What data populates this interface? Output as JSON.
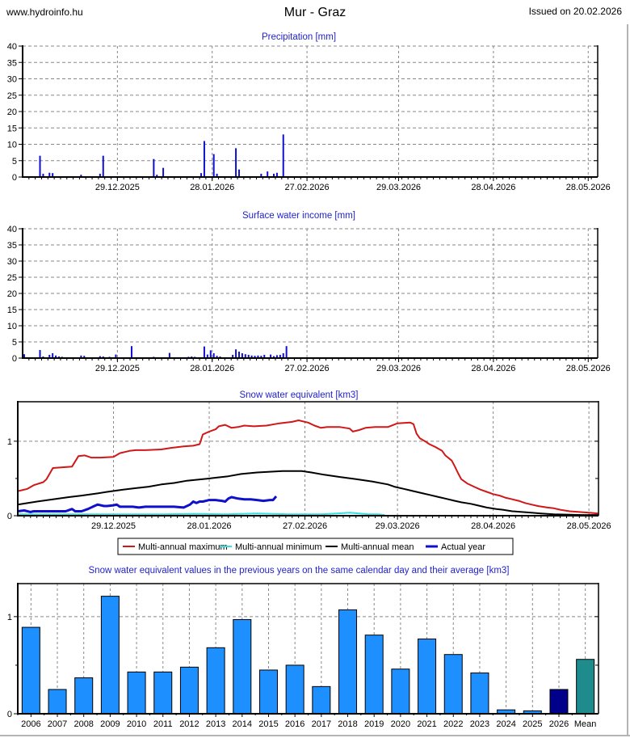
{
  "header": {
    "site": "www.hydroinfo.hu",
    "title": "Mur - Graz",
    "issued": "Issued on 20.02.2026"
  },
  "palette": {
    "title_blue": "#2222cc",
    "grid": "#888888",
    "axis": "#000000",
    "bar_blue": "#1010cf",
    "year_bar": "#1e8fff",
    "bar_2026": "#00008b",
    "bar_mean": "#1e8c8c",
    "line_max": "#d01818",
    "line_min": "#38dede",
    "line_mean": "#000000",
    "line_actual": "#0f0fcc",
    "frame_gray": "#b4b4b4"
  },
  "time_axis": {
    "span_days": 182,
    "tick_days": [
      30,
      60,
      90,
      119,
      149,
      179
    ],
    "tick_labels": [
      "29.12.2025",
      "28.01.2026",
      "27.02.2026",
      "29.03.2026",
      "28.04.2026",
      "28.05.2026"
    ]
  },
  "chart_data": [
    {
      "type": "bar",
      "title": "Precipitation [mm]",
      "ylabel": "mm",
      "ylim": [
        0,
        40
      ],
      "yticks": [
        0,
        5,
        10,
        15,
        20,
        25,
        30,
        35,
        40
      ],
      "grid": true,
      "bars": [
        [
          5,
          6.5
        ],
        [
          6,
          1.0
        ],
        [
          8,
          1.3
        ],
        [
          9,
          1.2
        ],
        [
          18,
          0.7
        ],
        [
          24,
          1.0
        ],
        [
          25,
          6.5
        ],
        [
          41,
          5.5
        ],
        [
          42,
          0.7
        ],
        [
          44,
          2.8
        ],
        [
          56,
          1.2
        ],
        [
          57,
          11.0
        ],
        [
          60,
          7.0
        ],
        [
          61,
          1.0
        ],
        [
          67,
          8.8
        ],
        [
          68,
          2.3
        ],
        [
          75,
          1.0
        ],
        [
          77,
          1.7
        ],
        [
          79,
          1.0
        ],
        [
          80,
          1.3
        ],
        [
          82,
          13.0
        ]
      ]
    },
    {
      "type": "bar",
      "title": "Surface water income [mm]",
      "ylabel": "mm",
      "ylim": [
        0,
        40
      ],
      "yticks": [
        0,
        5,
        10,
        15,
        20,
        25,
        30,
        35,
        40
      ],
      "grid": true,
      "bars": [
        [
          0,
          1.2
        ],
        [
          5,
          2.5
        ],
        [
          6,
          0.5
        ],
        [
          8,
          1.0
        ],
        [
          9,
          1.5
        ],
        [
          10,
          0.8
        ],
        [
          11,
          0.5
        ],
        [
          12,
          0.4
        ],
        [
          18,
          0.8
        ],
        [
          19,
          0.7
        ],
        [
          24,
          0.6
        ],
        [
          25,
          0.5
        ],
        [
          27,
          0.4
        ],
        [
          29,
          1.1
        ],
        [
          34,
          3.7
        ],
        [
          41,
          0.4
        ],
        [
          46,
          1.6
        ],
        [
          52,
          0.4
        ],
        [
          53,
          0.5
        ],
        [
          54,
          0.4
        ],
        [
          57,
          3.6
        ],
        [
          58,
          1.1
        ],
        [
          59,
          2.4
        ],
        [
          60,
          1.5
        ],
        [
          61,
          0.7
        ],
        [
          62,
          0.5
        ],
        [
          66,
          1.0
        ],
        [
          67,
          2.7
        ],
        [
          68,
          2.0
        ],
        [
          69,
          1.5
        ],
        [
          70,
          1.2
        ],
        [
          71,
          1.0
        ],
        [
          72,
          0.8
        ],
        [
          73,
          0.7
        ],
        [
          74,
          0.8
        ],
        [
          75,
          0.7
        ],
        [
          76,
          1.0
        ],
        [
          78,
          1.1
        ],
        [
          79,
          0.6
        ],
        [
          80,
          0.9
        ],
        [
          81,
          1.0
        ],
        [
          82,
          1.5
        ],
        [
          83,
          3.7
        ]
      ]
    },
    {
      "type": "line",
      "title": "Snow water equivalent [km3]",
      "ylabel": "km3",
      "ylim": [
        0,
        1.53
      ],
      "yticks": [
        0,
        1
      ],
      "minor_yticks": [
        0.5
      ],
      "grid": true,
      "legend_position": "bottom",
      "series": [
        {
          "name": "Multi-annual maximum",
          "color_key": "line_max",
          "width": 2,
          "points": [
            [
              0,
              0.33
            ],
            [
              3,
              0.36
            ],
            [
              5,
              0.41
            ],
            [
              8,
              0.45
            ],
            [
              9,
              0.49
            ],
            [
              11,
              0.64
            ],
            [
              14,
              0.65
            ],
            [
              17,
              0.66
            ],
            [
              19,
              0.8
            ],
            [
              21,
              0.81
            ],
            [
              23,
              0.78
            ],
            [
              26,
              0.78
            ],
            [
              30,
              0.79
            ],
            [
              32,
              0.84
            ],
            [
              35,
              0.87
            ],
            [
              37,
              0.88
            ],
            [
              40,
              0.88
            ],
            [
              45,
              0.89
            ],
            [
              48,
              0.91
            ],
            [
              52,
              0.93
            ],
            [
              55,
              0.94
            ],
            [
              57,
              0.96
            ],
            [
              58,
              1.09
            ],
            [
              60,
              1.13
            ],
            [
              62,
              1.16
            ],
            [
              63,
              1.2
            ],
            [
              65,
              1.22
            ],
            [
              67,
              1.18
            ],
            [
              69,
              1.19
            ],
            [
              71,
              1.21
            ],
            [
              74,
              1.2
            ],
            [
              78,
              1.21
            ],
            [
              82,
              1.24
            ],
            [
              86,
              1.26
            ],
            [
              88,
              1.28
            ],
            [
              91,
              1.25
            ],
            [
              93,
              1.21
            ],
            [
              95,
              1.18
            ],
            [
              97,
              1.19
            ],
            [
              101,
              1.19
            ],
            [
              104,
              1.17
            ],
            [
              105,
              1.13
            ],
            [
              107,
              1.15
            ],
            [
              109,
              1.18
            ],
            [
              112,
              1.19
            ],
            [
              116,
              1.19
            ],
            [
              119,
              1.24
            ],
            [
              123,
              1.25
            ],
            [
              124,
              1.23
            ],
            [
              125,
              1.1
            ],
            [
              126,
              1.04
            ],
            [
              128,
              0.99
            ],
            [
              129,
              0.96
            ],
            [
              131,
              0.92
            ],
            [
              133,
              0.87
            ],
            [
              134,
              0.81
            ],
            [
              136,
              0.74
            ],
            [
              137,
              0.66
            ],
            [
              138,
              0.57
            ],
            [
              139,
              0.49
            ],
            [
              141,
              0.43
            ],
            [
              143,
              0.39
            ],
            [
              145,
              0.35
            ],
            [
              147,
              0.32
            ],
            [
              149,
              0.29
            ],
            [
              151,
              0.27
            ],
            [
              153,
              0.24
            ],
            [
              155,
              0.22
            ],
            [
              157,
              0.2
            ],
            [
              159,
              0.17
            ],
            [
              161,
              0.15
            ],
            [
              163,
              0.13
            ],
            [
              166,
              0.11
            ],
            [
              168,
              0.1
            ],
            [
              170,
              0.08
            ],
            [
              173,
              0.06
            ],
            [
              176,
              0.05
            ],
            [
              179,
              0.04
            ],
            [
              182,
              0.03
            ]
          ]
        },
        {
          "name": "Multi-annual minimum",
          "color_key": "line_min",
          "width": 2,
          "points": [
            [
              0,
              0.02
            ],
            [
              15,
              0.02
            ],
            [
              30,
              0.02
            ],
            [
              45,
              0.02
            ],
            [
              55,
              0.025
            ],
            [
              65,
              0.02
            ],
            [
              75,
              0.03
            ],
            [
              85,
              0.02
            ],
            [
              95,
              0.02
            ],
            [
              100,
              0.03
            ],
            [
              104,
              0.04
            ],
            [
              107,
              0.03
            ],
            [
              110,
              0.02
            ],
            [
              113,
              0.02
            ],
            [
              115,
              0.01
            ]
          ]
        },
        {
          "name": "Multi-annual mean",
          "color_key": "line_mean",
          "width": 2,
          "points": [
            [
              0,
              0.15
            ],
            [
              6,
              0.19
            ],
            [
              11,
              0.22
            ],
            [
              16,
              0.25
            ],
            [
              20,
              0.27
            ],
            [
              25,
              0.3
            ],
            [
              28,
              0.32
            ],
            [
              33,
              0.35
            ],
            [
              37,
              0.37
            ],
            [
              41,
              0.39
            ],
            [
              45,
              0.42
            ],
            [
              49,
              0.44
            ],
            [
              53,
              0.47
            ],
            [
              58,
              0.49
            ],
            [
              62,
              0.51
            ],
            [
              66,
              0.53
            ],
            [
              70,
              0.56
            ],
            [
              75,
              0.58
            ],
            [
              79,
              0.59
            ],
            [
              83,
              0.6
            ],
            [
              89,
              0.6
            ],
            [
              92,
              0.58
            ],
            [
              96,
              0.55
            ],
            [
              101,
              0.52
            ],
            [
              106,
              0.49
            ],
            [
              111,
              0.46
            ],
            [
              116,
              0.42
            ],
            [
              118,
              0.39
            ],
            [
              121,
              0.36
            ],
            [
              124,
              0.33
            ],
            [
              127,
              0.3
            ],
            [
              129,
              0.28
            ],
            [
              132,
              0.25
            ],
            [
              134,
              0.23
            ],
            [
              137,
              0.2
            ],
            [
              139,
              0.18
            ],
            [
              142,
              0.16
            ],
            [
              144,
              0.14
            ],
            [
              147,
              0.11
            ],
            [
              150,
              0.09
            ],
            [
              152,
              0.08
            ],
            [
              155,
              0.06
            ],
            [
              158,
              0.05
            ],
            [
              161,
              0.04
            ],
            [
              164,
              0.03
            ],
            [
              168,
              0.02
            ],
            [
              172,
              0.015
            ],
            [
              177,
              0.01
            ],
            [
              182,
              0.01
            ]
          ]
        },
        {
          "name": "Actual year",
          "color_key": "line_actual",
          "width": 3,
          "points": [
            [
              0,
              0.06
            ],
            [
              2,
              0.07
            ],
            [
              4,
              0.05
            ],
            [
              5,
              0.06
            ],
            [
              7,
              0.06
            ],
            [
              9,
              0.06
            ],
            [
              12,
              0.06
            ],
            [
              15,
              0.06
            ],
            [
              17,
              0.09
            ],
            [
              18,
              0.06
            ],
            [
              20,
              0.06
            ],
            [
              22,
              0.09
            ],
            [
              24,
              0.13
            ],
            [
              25,
              0.15
            ],
            [
              27,
              0.13
            ],
            [
              28,
              0.13
            ],
            [
              30,
              0.14
            ],
            [
              31,
              0.15
            ],
            [
              32,
              0.12
            ],
            [
              34,
              0.12
            ],
            [
              36,
              0.12
            ],
            [
              38,
              0.11
            ],
            [
              40,
              0.12
            ],
            [
              43,
              0.12
            ],
            [
              46,
              0.12
            ],
            [
              49,
              0.12
            ],
            [
              52,
              0.11
            ],
            [
              54,
              0.15
            ],
            [
              55,
              0.19
            ],
            [
              56,
              0.17
            ],
            [
              57,
              0.19
            ],
            [
              58,
              0.19
            ],
            [
              60,
              0.21
            ],
            [
              62,
              0.21
            ],
            [
              64,
              0.2
            ],
            [
              65,
              0.19
            ],
            [
              66,
              0.23
            ],
            [
              67,
              0.25
            ],
            [
              69,
              0.23
            ],
            [
              71,
              0.22
            ],
            [
              73,
              0.22
            ],
            [
              75,
              0.21
            ],
            [
              77,
              0.2
            ],
            [
              79,
              0.21
            ],
            [
              80,
              0.21
            ],
            [
              81,
              0.26
            ]
          ]
        }
      ],
      "legend": [
        {
          "label": "Multi-annual maximum",
          "color_key": "line_max",
          "width": 2
        },
        {
          "label": "Multi-annual minimum",
          "color_key": "line_min",
          "width": 2
        },
        {
          "label": "Multi-annual mean",
          "color_key": "line_mean",
          "width": 2
        },
        {
          "label": "Actual year",
          "color_key": "line_actual",
          "width": 3
        }
      ]
    },
    {
      "type": "year-bar",
      "title": "Snow water equivalent values in the previous years on the same calendar day and their average [km3]",
      "ylabel": "km3",
      "ylim": [
        0,
        1.34
      ],
      "yticks": [
        0,
        1
      ],
      "minor_yticks": [
        0.5
      ],
      "grid": true,
      "categories": [
        "2006",
        "2007",
        "2008",
        "2009",
        "2010",
        "2011",
        "2012",
        "2013",
        "2014",
        "2015",
        "2016",
        "2017",
        "2018",
        "2019",
        "2020",
        "2021",
        "2022",
        "2023",
        "2024",
        "2025",
        "2026",
        "Mean"
      ],
      "values": [
        0.89,
        0.25,
        0.37,
        1.21,
        0.43,
        0.43,
        0.48,
        0.68,
        0.97,
        0.45,
        0.5,
        0.28,
        1.07,
        0.81,
        0.46,
        0.77,
        0.61,
        0.42,
        0.04,
        0.03,
        0.25,
        0.56
      ],
      "colors_override": {
        "2026": "bar_2026",
        "Mean": "bar_mean"
      }
    }
  ]
}
